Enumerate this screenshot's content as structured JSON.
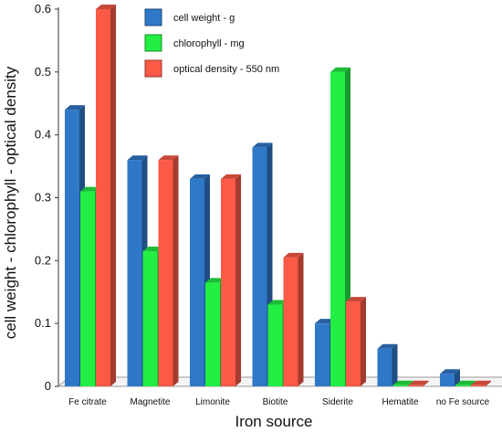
{
  "chart_data": {
    "type": "bar",
    "title": "",
    "xlabel": "Iron source",
    "ylabel": "cell weight - chlorophyll - optical density",
    "ylim": [
      0,
      0.6
    ],
    "yticks": [
      "0",
      "0.1",
      "0.2",
      "0.3",
      "0.4",
      "0.5",
      "0.6"
    ],
    "categories": [
      "Fe citrate",
      "Magnetite",
      "Limonite",
      "Biotite",
      "Siderite",
      "Hematite",
      "no Fe source"
    ],
    "grid": false,
    "legend_position": "top-center",
    "series": [
      {
        "name": "cell weight - g",
        "color": "#2f78c8",
        "values": [
          0.44,
          0.36,
          0.33,
          0.38,
          0.1,
          0.06,
          0.02
        ]
      },
      {
        "name": "chlorophyll - mg",
        "color": "#22ee44",
        "values": [
          0.31,
          0.215,
          0.165,
          0.13,
          0.5,
          0.0,
          0.0
        ]
      },
      {
        "name": " optical density - 550 nm",
        "color": "#fa5a46",
        "values": [
          0.6,
          0.36,
          0.33,
          0.205,
          0.135,
          0.0,
          0.0
        ]
      }
    ]
  }
}
